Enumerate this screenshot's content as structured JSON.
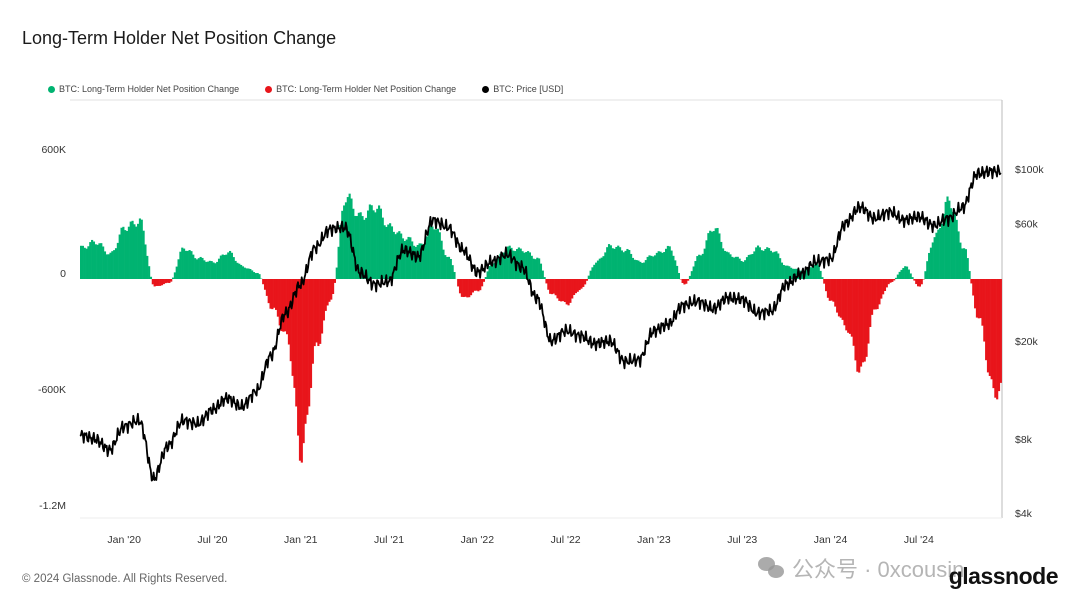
{
  "title": "Long-Term Holder Net Position Change",
  "legend": [
    {
      "label": "BTC: Long-Term Holder Net Position Change",
      "color": "#00b371"
    },
    {
      "label": "BTC: Long-Term Holder Net Position Change",
      "color": "#e8151b"
    },
    {
      "label": "BTC: Price [USD]",
      "color": "#000000"
    }
  ],
  "footer": "© 2024 Glassnode. All Rights Reserved.",
  "logo": "glassnode",
  "watermark": "公众号 · 0xcousin",
  "chart_data": {
    "type": "bar",
    "title": "Long-Term Holder Net Position Change",
    "x_range": [
      "2019-10",
      "2024-12"
    ],
    "x_ticks": [
      {
        "date": "2020-01",
        "label": "Jan '20"
      },
      {
        "date": "2020-07",
        "label": "Jul '20"
      },
      {
        "date": "2021-01",
        "label": "Jan '21"
      },
      {
        "date": "2021-07",
        "label": "Jul '21"
      },
      {
        "date": "2022-01",
        "label": "Jan '22"
      },
      {
        "date": "2022-07",
        "label": "Jul '22"
      },
      {
        "date": "2023-01",
        "label": "Jan '23"
      },
      {
        "date": "2023-07",
        "label": "Jul '23"
      },
      {
        "date": "2024-01",
        "label": "Jan '24"
      },
      {
        "date": "2024-07",
        "label": "Jul '24"
      }
    ],
    "y_left": {
      "range": [
        -1200000,
        800000
      ],
      "ticks": [
        {
          "v": 600000,
          "label": "600K"
        },
        {
          "v": 0,
          "label": "0"
        },
        {
          "v": -600000,
          "label": "-600K"
        },
        {
          "v": -1200000,
          "label": "-1.2M"
        }
      ]
    },
    "y_right": {
      "scale": "log",
      "range": [
        4000,
        170000
      ],
      "ticks": [
        {
          "v": 100000,
          "label": "$100k"
        },
        {
          "v": 60000,
          "label": "$60k"
        },
        {
          "v": 20000,
          "label": "$20k"
        },
        {
          "v": 8000,
          "label": "$8k"
        },
        {
          "v": 4000,
          "label": "$4k"
        }
      ]
    },
    "grid": false,
    "legend_position": "top-left",
    "positive_color": "#00b371",
    "negative_color": "#e8151b",
    "price_color": "#000000",
    "dates": [
      "2019-10",
      "2019-11",
      "2019-12",
      "2020-01",
      "2020-02",
      "2020-03",
      "2020-04",
      "2020-05",
      "2020-06",
      "2020-07",
      "2020-08",
      "2020-09",
      "2020-10",
      "2020-11",
      "2020-12",
      "2021-01",
      "2021-02",
      "2021-03",
      "2021-04",
      "2021-05",
      "2021-06",
      "2021-07",
      "2021-08",
      "2021-09",
      "2021-10",
      "2021-11",
      "2021-12",
      "2022-01",
      "2022-02",
      "2022-03",
      "2022-04",
      "2022-05",
      "2022-06",
      "2022-07",
      "2022-08",
      "2022-09",
      "2022-10",
      "2022-11",
      "2022-12",
      "2023-01",
      "2023-02",
      "2023-03",
      "2023-04",
      "2023-05",
      "2023-06",
      "2023-07",
      "2023-08",
      "2023-09",
      "2023-10",
      "2023-11",
      "2023-12",
      "2024-01",
      "2024-02",
      "2024-03",
      "2024-04",
      "2024-05",
      "2024-06",
      "2024-07",
      "2024-08",
      "2024-09",
      "2024-10",
      "2024-11",
      "2024-12"
    ],
    "series": [
      {
        "name": "BTC: Long-Term Holder Net Position Change",
        "values": [
          150000,
          180000,
          120000,
          250000,
          280000,
          -40000,
          -20000,
          150000,
          100000,
          80000,
          130000,
          60000,
          30000,
          -150000,
          -300000,
          -900000,
          -350000,
          -100000,
          400000,
          300000,
          350000,
          250000,
          200000,
          160000,
          260000,
          100000,
          -100000,
          -60000,
          80000,
          150000,
          140000,
          100000,
          -80000,
          -130000,
          -50000,
          80000,
          160000,
          140000,
          80000,
          120000,
          150000,
          -30000,
          110000,
          250000,
          120000,
          90000,
          150000,
          140000,
          60000,
          40000,
          70000,
          -120000,
          -250000,
          -480000,
          -150000,
          -20000,
          60000,
          -40000,
          200000,
          380000,
          150000,
          -200000,
          -580000
        ]
      },
      {
        "name": "BTC: Price [USD]",
        "values": [
          8300,
          8000,
          7200,
          9000,
          9500,
          5500,
          7500,
          9500,
          9200,
          10500,
          11700,
          10800,
          12500,
          17500,
          26000,
          34000,
          48000,
          57000,
          58000,
          38000,
          34000,
          35000,
          47000,
          44000,
          62000,
          58000,
          47000,
          38000,
          42000,
          45000,
          40000,
          30000,
          20000,
          22000,
          21000,
          19500,
          20000,
          16500,
          16800,
          22000,
          23500,
          28000,
          29000,
          27000,
          30000,
          29500,
          26000,
          26500,
          34000,
          37500,
          42000,
          43000,
          60000,
          70000,
          63000,
          67000,
          62000,
          64000,
          59000,
          63000,
          70000,
          96000,
          98000
        ]
      }
    ]
  }
}
